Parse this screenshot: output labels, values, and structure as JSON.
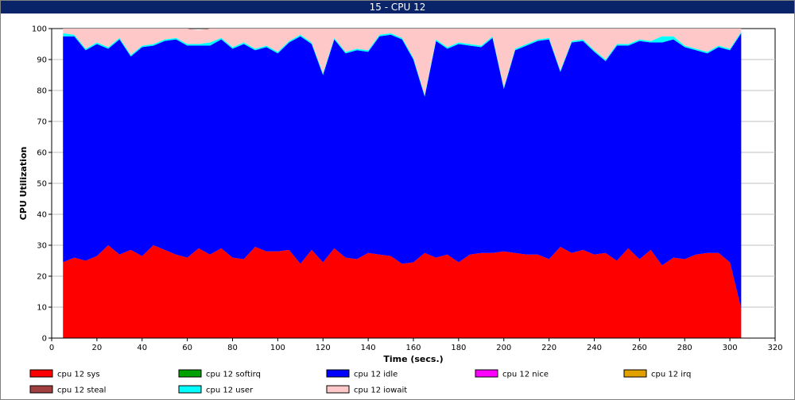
{
  "window": {
    "title": "15 - CPU 12"
  },
  "chart_data": {
    "type": "area",
    "stacked": true,
    "xlabel": "Time (secs.)",
    "ylabel": "CPU Utilization",
    "xlim": [
      0,
      320
    ],
    "ylim": [
      0,
      100
    ],
    "xticks": [
      0,
      20,
      40,
      60,
      80,
      100,
      120,
      140,
      160,
      180,
      200,
      220,
      240,
      260,
      280,
      300,
      320
    ],
    "yticks": [
      0,
      10,
      20,
      30,
      40,
      50,
      60,
      70,
      80,
      90,
      100
    ],
    "grid": true,
    "legend_position": "bottom",
    "x": [
      5,
      10,
      15,
      20,
      25,
      30,
      35,
      40,
      45,
      50,
      55,
      60,
      65,
      70,
      75,
      80,
      85,
      90,
      95,
      100,
      105,
      110,
      115,
      120,
      125,
      130,
      135,
      140,
      145,
      150,
      155,
      160,
      165,
      170,
      175,
      180,
      185,
      190,
      195,
      200,
      205,
      210,
      215,
      220,
      225,
      230,
      235,
      240,
      245,
      250,
      255,
      260,
      265,
      270,
      275,
      280,
      285,
      290,
      295,
      300,
      305
    ],
    "series": [
      {
        "name": "cpu 12 sys",
        "color": "#ff0000",
        "values": [
          24.5,
          26,
          25,
          26.5,
          30,
          27,
          28.5,
          26.5,
          30,
          28.5,
          27,
          26,
          29,
          27,
          29,
          26,
          25.5,
          29.5,
          28,
          28,
          28.5,
          24,
          28.5,
          24.5,
          29,
          26,
          25.5,
          27.5,
          27,
          26.5,
          24,
          24.5,
          27.5,
          26,
          27,
          24.5,
          27,
          27.5,
          27.5,
          28,
          27.5,
          27,
          27,
          25.5,
          29.5,
          27.5,
          28.5,
          27,
          27.5,
          25,
          29,
          25.5,
          28.5,
          23.5,
          26,
          25.5,
          27,
          27.5,
          27.5,
          24.5,
          9.5
        ]
      },
      {
        "name": "cpu 12 softirq",
        "color": "#00a000",
        "values": [
          0,
          0,
          0,
          0,
          0,
          0,
          0,
          0,
          0,
          0,
          0,
          0,
          0,
          0,
          0,
          0,
          0,
          0,
          0,
          0,
          0,
          0,
          0,
          0,
          0,
          0,
          0,
          0,
          0,
          0,
          0,
          0,
          0,
          0,
          0,
          0,
          0,
          0,
          0,
          0,
          0,
          0,
          0,
          0,
          0,
          0,
          0,
          0,
          0,
          0,
          0,
          0,
          0,
          0,
          0,
          0,
          0,
          0,
          0,
          0,
          0
        ]
      },
      {
        "name": "cpu 12 idle",
        "color": "#0000ff",
        "values": [
          73,
          71.5,
          68,
          68.5,
          63.5,
          69.5,
          62.5,
          67.5,
          64.5,
          67.5,
          69.5,
          68.5,
          65.5,
          67.5,
          67.5,
          67.5,
          69.5,
          63.5,
          66,
          64,
          67,
          73.5,
          66.5,
          60.5,
          67.5,
          66,
          67.5,
          65,
          70.5,
          71.5,
          72.5,
          65.5,
          50.5,
          70,
          66.5,
          70.5,
          67.5,
          66.5,
          69.5,
          52.5,
          65.5,
          67.5,
          69,
          71,
          56.5,
          68,
          67.5,
          65.5,
          62,
          69.5,
          65.5,
          70.5,
          67,
          72,
          70.5,
          68.5,
          66,
          64.5,
          66.5,
          68.5,
          89
        ]
      },
      {
        "name": "cpu 12 nice",
        "color": "#ff00ff",
        "values": [
          0,
          0,
          0,
          0,
          0,
          0,
          0,
          0,
          0,
          0,
          0,
          0,
          0,
          0,
          0,
          0,
          0,
          0,
          0,
          0,
          0,
          0,
          0,
          0,
          0,
          0,
          0,
          0,
          0,
          0,
          0,
          0,
          0,
          0,
          0,
          0,
          0,
          0,
          0,
          0,
          0,
          0,
          0,
          0,
          0,
          0,
          0,
          0,
          0,
          0,
          0,
          0,
          0,
          0,
          0,
          0,
          0,
          0,
          0,
          0,
          0
        ]
      },
      {
        "name": "cpu 12 irq",
        "color": "#e0a000",
        "values": [
          0,
          0,
          0,
          0,
          0,
          0,
          0,
          0,
          0,
          0,
          0,
          0,
          0,
          0,
          0,
          0,
          0,
          0,
          0,
          0,
          0,
          0,
          0,
          0,
          0,
          0,
          0,
          0,
          0,
          0,
          0,
          0,
          0,
          0,
          0,
          0,
          0,
          0,
          0,
          0,
          0,
          0,
          0,
          0,
          0,
          0,
          0,
          0,
          0,
          0,
          0,
          0,
          0,
          0,
          0,
          0,
          0,
          0,
          0,
          0,
          0
        ]
      },
      {
        "name": "cpu 12 steal",
        "color": "#a04040",
        "values": [
          0,
          0,
          0,
          0,
          0,
          0,
          0,
          0,
          0,
          0,
          0,
          0,
          0,
          0,
          0,
          0,
          0,
          0,
          0,
          0,
          0,
          0,
          0,
          0,
          0,
          0,
          0,
          0,
          0,
          0,
          0,
          0,
          0,
          0,
          0,
          0,
          0,
          0,
          0,
          0,
          0,
          0,
          0,
          0,
          0,
          0,
          0,
          0,
          0,
          0,
          0,
          0,
          0,
          0,
          0,
          0,
          0,
          0,
          0,
          0,
          0
        ]
      },
      {
        "name": "cpu 12 user",
        "color": "#00ffff",
        "values": [
          1,
          0.5,
          0.5,
          0.5,
          0.5,
          0.5,
          0.5,
          0.5,
          0.5,
          0.5,
          0.5,
          0.5,
          0.5,
          1,
          0.5,
          0.5,
          0.5,
          0.5,
          0.5,
          0.5,
          0.5,
          0.5,
          0.5,
          0.5,
          0.5,
          0.5,
          0.5,
          0.5,
          0.5,
          0.5,
          0.5,
          0.5,
          0.5,
          0.5,
          0.5,
          0.5,
          0.5,
          0.5,
          0.5,
          0.5,
          0.5,
          0.5,
          0.5,
          0.5,
          0.5,
          0.5,
          0.5,
          0.5,
          0.5,
          0.5,
          0.5,
          0.5,
          0.5,
          2,
          1,
          0.5,
          0.5,
          0.5,
          0.5,
          0.5,
          0.5
        ]
      },
      {
        "name": "cpu 12 iowait",
        "color": "#ffc8c8",
        "values": [
          1.5,
          2,
          6.5,
          4.5,
          6,
          3,
          8.5,
          5.5,
          5,
          3.5,
          3,
          5,
          4.5,
          4.5,
          3,
          6,
          4.5,
          6.5,
          5.5,
          7.5,
          4,
          2,
          4.5,
          14.5,
          3,
          7.5,
          6.5,
          7,
          2,
          1.5,
          3,
          9.5,
          21.5,
          3.5,
          6,
          4.5,
          5,
          5.5,
          2.5,
          19,
          6.5,
          5,
          3.5,
          3,
          13.5,
          4,
          3.5,
          7,
          10,
          5,
          5,
          3.5,
          4,
          2.5,
          2.5,
          5.5,
          6.5,
          7.5,
          5.5,
          6.5,
          1
        ]
      }
    ]
  }
}
